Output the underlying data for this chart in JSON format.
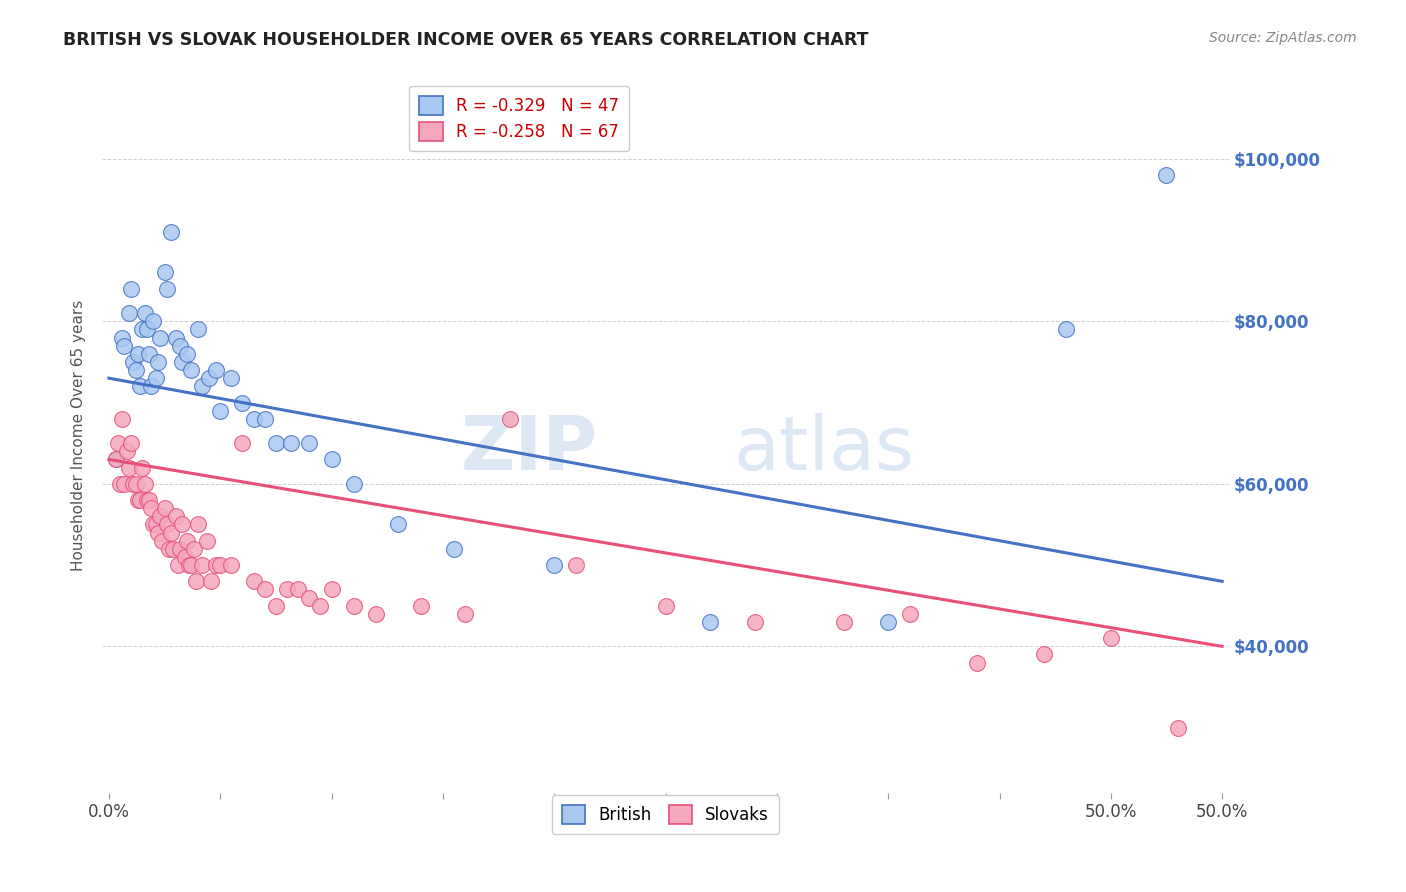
{
  "title": "BRITISH VS SLOVAK HOUSEHOLDER INCOME OVER 65 YEARS CORRELATION CHART",
  "source": "Source: ZipAtlas.com",
  "ylabel": "Householder Income Over 65 years",
  "ytick_labels": [
    "$40,000",
    "$60,000",
    "$80,000",
    "$100,000"
  ],
  "ytick_values": [
    40000,
    60000,
    80000,
    100000
  ],
  "ylim": [
    22000,
    110000
  ],
  "xlim": [
    -0.003,
    0.503
  ],
  "legend_entry1": "R = -0.329   N = 47",
  "legend_entry2": "R = -0.258   N = 67",
  "legend_label1": "British",
  "legend_label2": "Slovaks",
  "color_british": "#A8C8F0",
  "color_slovak": "#F4A8BC",
  "color_british_line": "#4472C4",
  "color_slovak_line": "#E8507A",
  "watermark_zip": "ZIP",
  "watermark_atlas": "atlas",
  "british_x": [
    0.003,
    0.006,
    0.007,
    0.009,
    0.01,
    0.011,
    0.012,
    0.013,
    0.014,
    0.015,
    0.016,
    0.017,
    0.018,
    0.019,
    0.02,
    0.021,
    0.022,
    0.023,
    0.025,
    0.026,
    0.028,
    0.03,
    0.032,
    0.033,
    0.035,
    0.037,
    0.04,
    0.042,
    0.045,
    0.048,
    0.05,
    0.055,
    0.06,
    0.065,
    0.07,
    0.075,
    0.082,
    0.09,
    0.1,
    0.11,
    0.13,
    0.155,
    0.2,
    0.27,
    0.35,
    0.43,
    0.475
  ],
  "british_y": [
    63000,
    78000,
    77000,
    81000,
    84000,
    75000,
    74000,
    76000,
    72000,
    79000,
    81000,
    79000,
    76000,
    72000,
    80000,
    73000,
    75000,
    78000,
    86000,
    84000,
    91000,
    78000,
    77000,
    75000,
    76000,
    74000,
    79000,
    72000,
    73000,
    74000,
    69000,
    73000,
    70000,
    68000,
    68000,
    65000,
    65000,
    65000,
    63000,
    60000,
    55000,
    52000,
    50000,
    43000,
    43000,
    79000,
    98000
  ],
  "slovak_x": [
    0.003,
    0.004,
    0.005,
    0.006,
    0.007,
    0.008,
    0.009,
    0.01,
    0.011,
    0.012,
    0.013,
    0.014,
    0.015,
    0.016,
    0.017,
    0.018,
    0.019,
    0.02,
    0.021,
    0.022,
    0.023,
    0.024,
    0.025,
    0.026,
    0.027,
    0.028,
    0.029,
    0.03,
    0.031,
    0.032,
    0.033,
    0.034,
    0.035,
    0.036,
    0.037,
    0.038,
    0.039,
    0.04,
    0.042,
    0.044,
    0.046,
    0.048,
    0.05,
    0.055,
    0.06,
    0.065,
    0.07,
    0.075,
    0.08,
    0.085,
    0.09,
    0.095,
    0.1,
    0.11,
    0.12,
    0.14,
    0.16,
    0.18,
    0.21,
    0.25,
    0.29,
    0.33,
    0.36,
    0.39,
    0.42,
    0.45,
    0.48
  ],
  "slovak_y": [
    63000,
    65000,
    60000,
    68000,
    60000,
    64000,
    62000,
    65000,
    60000,
    60000,
    58000,
    58000,
    62000,
    60000,
    58000,
    58000,
    57000,
    55000,
    55000,
    54000,
    56000,
    53000,
    57000,
    55000,
    52000,
    54000,
    52000,
    56000,
    50000,
    52000,
    55000,
    51000,
    53000,
    50000,
    50000,
    52000,
    48000,
    55000,
    50000,
    53000,
    48000,
    50000,
    50000,
    50000,
    65000,
    48000,
    47000,
    45000,
    47000,
    47000,
    46000,
    45000,
    47000,
    45000,
    44000,
    45000,
    44000,
    68000,
    50000,
    45000,
    43000,
    43000,
    44000,
    38000,
    39000,
    41000,
    30000
  ],
  "british_line_x": [
    0.0,
    0.5
  ],
  "british_line_y": [
    73000,
    48000
  ],
  "slovak_line_x": [
    0.0,
    0.5
  ],
  "slovak_line_y": [
    63000,
    40000
  ],
  "xtick_positions": [
    0.0,
    0.05,
    0.1,
    0.15,
    0.2,
    0.25,
    0.3,
    0.35,
    0.4,
    0.45,
    0.5
  ],
  "xtick_labels_show": {
    "0.0": "0.0%",
    "0.5": "50.0%"
  }
}
